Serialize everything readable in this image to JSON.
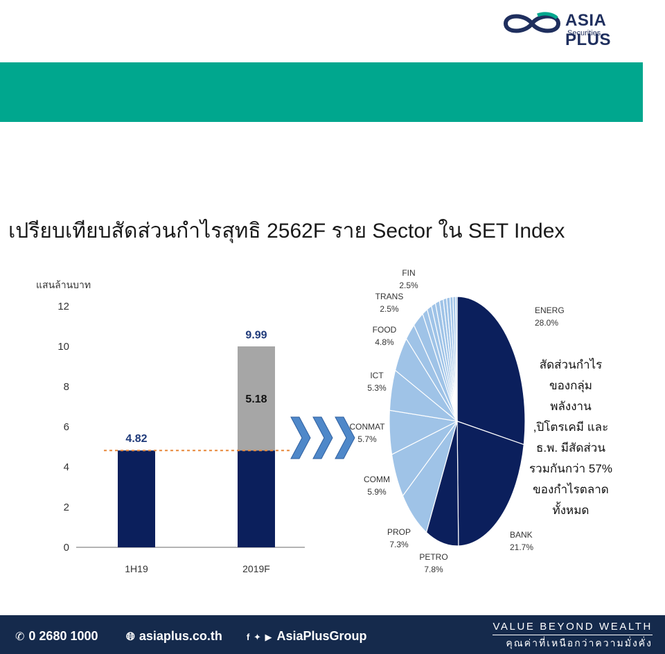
{
  "header": {
    "brand": "ASIA PLUS",
    "brand_sub": "Securities"
  },
  "title": "เปรียบเทียบสัดส่วนกำไรสุทธิ 2562F ราย Sector ใน SET Index",
  "note": "สัดส่วนกำไรของกลุ่มพลังงาน ,ปิโตรเคมี และ ธ.พ. มีสัดส่วนรวมกันกว่า 57% ของกำไรตลาดทั้งหมด",
  "colors": {
    "band": "#00a78e",
    "navy": "#0b1f5c",
    "gray": "#a6a6a6",
    "light_blue": "#9fc3e7",
    "arrow": "#4f88c9",
    "dashed": "#e8883a",
    "footer": "#152a4c"
  },
  "chart_data": [
    {
      "type": "bar",
      "ylabel": "แสนล้านบาท",
      "ylim": [
        0,
        12
      ],
      "yticks": [
        "0",
        "2",
        "4",
        "6",
        "8",
        "10",
        "12"
      ],
      "categories": [
        "1H19",
        "2019F"
      ],
      "series": [
        {
          "values": [
            4.82,
            4.82
          ]
        },
        {
          "values": [
            0,
            5.18
          ]
        }
      ],
      "segment_labels": [
        "5.18"
      ],
      "totals": [
        4.82,
        9.99
      ],
      "total_labels": [
        "4.82",
        "9.99"
      ],
      "reference_line": 4.82
    },
    {
      "type": "pie",
      "slices": [
        {
          "name": "ENERG",
          "value": 28.0,
          "label": "28.0%"
        },
        {
          "name": "BANK",
          "value": 21.7,
          "label": "21.7%"
        },
        {
          "name": "PETRO",
          "value": 7.8,
          "label": "7.8%"
        },
        {
          "name": "PROP",
          "value": 7.3,
          "label": "7.3%"
        },
        {
          "name": "COMM",
          "value": 5.9,
          "label": "5.9%"
        },
        {
          "name": "CONMAT",
          "value": 5.7,
          "label": "5.7%"
        },
        {
          "name": "ICT",
          "value": 5.3,
          "label": "5.3%"
        },
        {
          "name": "FOOD",
          "value": 4.8,
          "label": "4.8%"
        },
        {
          "name": "TRANS",
          "value": 2.5,
          "label": "2.5%"
        },
        {
          "name": "FIN",
          "value": 2.5,
          "label": "2.5%"
        },
        {
          "name": "",
          "value": 1.2,
          "label": ""
        },
        {
          "name": "",
          "value": 1.1,
          "label": ""
        },
        {
          "name": "",
          "value": 1.0,
          "label": ""
        },
        {
          "name": "",
          "value": 1.0,
          "label": ""
        },
        {
          "name": "",
          "value": 0.9,
          "label": ""
        },
        {
          "name": "",
          "value": 0.8,
          "label": ""
        },
        {
          "name": "",
          "value": 0.8,
          "label": ""
        },
        {
          "name": "",
          "value": 0.7,
          "label": ""
        },
        {
          "name": "",
          "value": 0.6,
          "label": ""
        },
        {
          "name": "",
          "value": 0.4,
          "label": ""
        }
      ]
    }
  ],
  "footer": {
    "phone": "0 2680 1000",
    "website": "asiaplus.co.th",
    "social": "AsiaPlusGroup",
    "tagline": "VALUE BEYOND WEALTH",
    "tagline_th": "คุณค่าที่เหนือกว่าความมั่งคั่ง"
  }
}
